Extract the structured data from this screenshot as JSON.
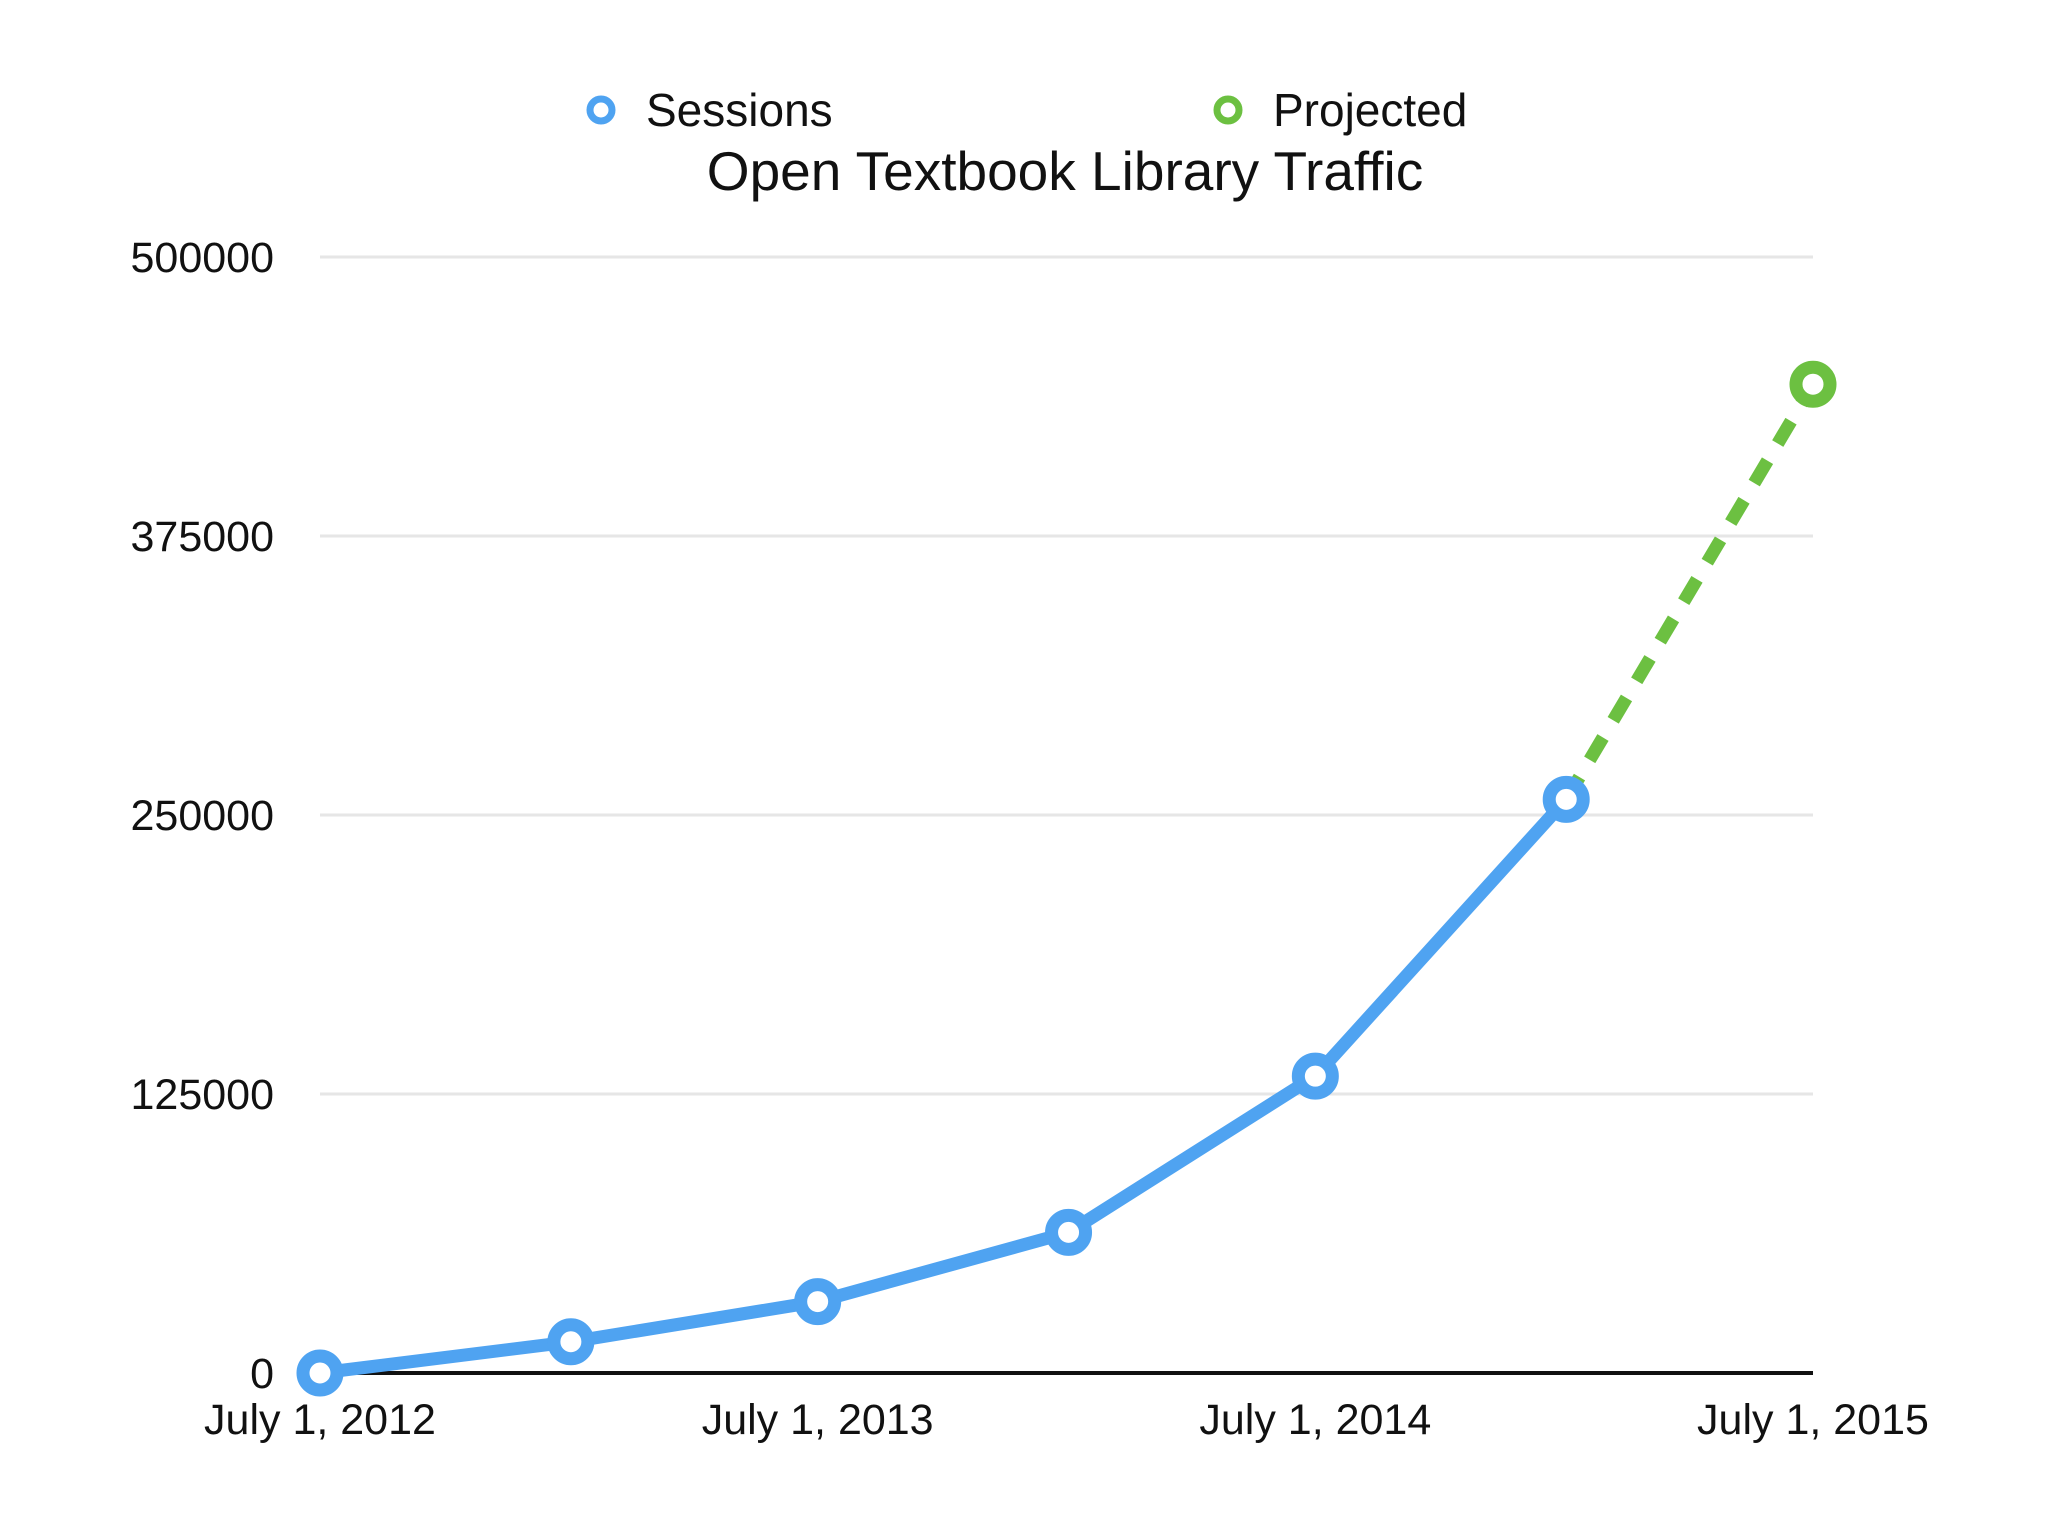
{
  "chart_data": {
    "type": "line",
    "title": "Open Textbook Library Traffic",
    "xlabel": "",
    "ylabel": "",
    "x_tick_labels": [
      "July 1, 2012",
      "July 1, 2013",
      "July 1, 2014",
      "July 1, 2015"
    ],
    "x_ticks": [
      "2012-07-01",
      "2013-07-01",
      "2014-07-01",
      "2015-07-01"
    ],
    "xlim": [
      "2012-07-01",
      "2015-07-01"
    ],
    "y_tick_labels": [
      "0",
      "125000",
      "250000",
      "375000",
      "500000"
    ],
    "y_ticks": [
      0,
      125000,
      250000,
      375000,
      500000
    ],
    "ylim": [
      0,
      500000
    ],
    "grid": "horizontal",
    "legend_position": "top",
    "series": [
      {
        "name": "Sessions",
        "color": "#4fa3f1",
        "style": "solid",
        "x": [
          "2012-07-01",
          "2013-01-01",
          "2013-07-01",
          "2014-01-01",
          "2014-07-01",
          "2015-01-01"
        ],
        "y": [
          0,
          14000,
          32000,
          63000,
          133000,
          257000
        ]
      },
      {
        "name": "Projected",
        "color": "#6cc041",
        "style": "dashed",
        "x": [
          "2015-01-01",
          "2015-07-01"
        ],
        "y": [
          257000,
          443000
        ]
      }
    ]
  }
}
